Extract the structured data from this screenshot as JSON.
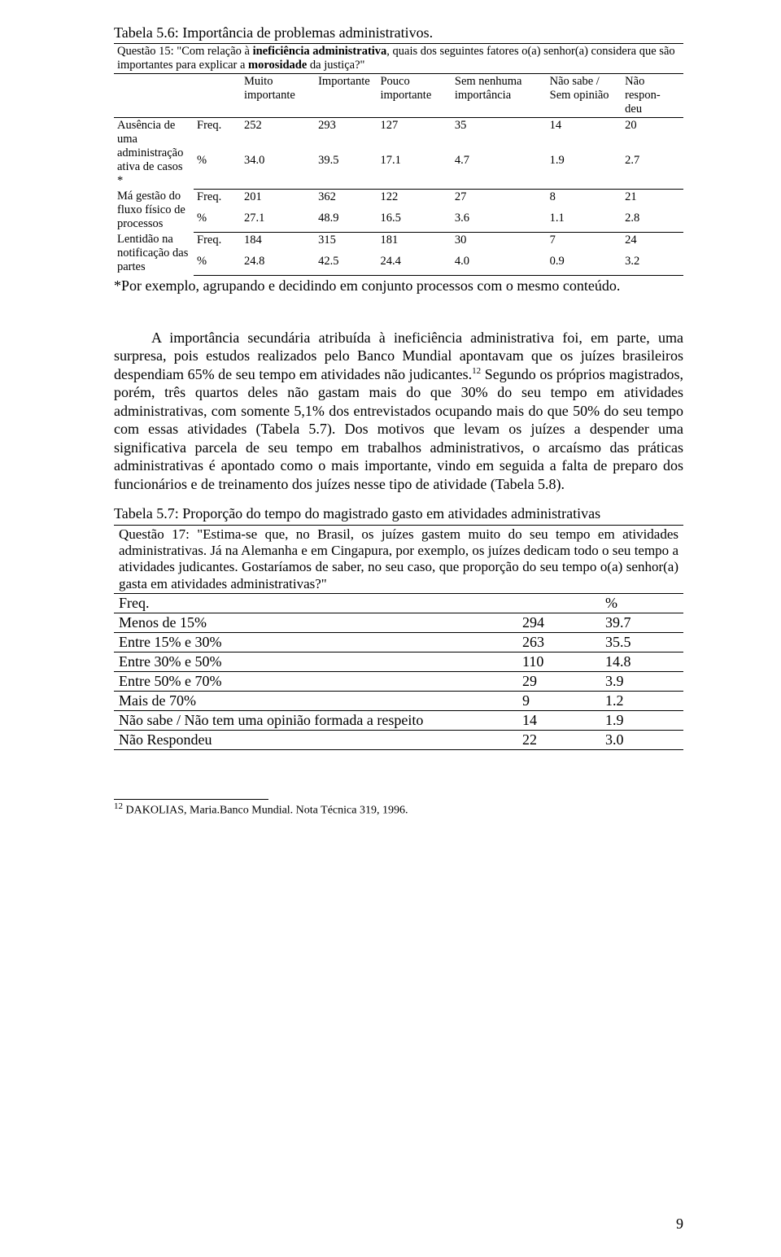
{
  "page_number": "9",
  "table56": {
    "title": "Tabela 5.6: Importância de problemas administrativos.",
    "question": "Questão 15: \"Com relação à ineficiência administrativa, quais dos seguintes fatores o(a) senhor(a) considera que são importantes para explicar a morosidade da justiça?\"",
    "headers": {
      "c1": "Muito importante",
      "c2": "Importante",
      "c3": "Pouco importante",
      "c4": "Sem nenhuma importância",
      "c5": "Não sabe / Sem opinião",
      "c6": "Não respon- deu"
    },
    "rows": [
      {
        "label": "Ausência de uma administração ativa de casos *",
        "freq": [
          "252",
          "293",
          "127",
          "35",
          "14",
          "20"
        ],
        "pct": [
          "34.0",
          "39.5",
          "17.1",
          "4.7",
          "1.9",
          "2.7"
        ]
      },
      {
        "label": "Má gestão do fluxo físico de processos",
        "freq": [
          "201",
          "362",
          "122",
          "27",
          "8",
          "21"
        ],
        "pct": [
          "27.1",
          "48.9",
          "16.5",
          "3.6",
          "1.1",
          "2.8"
        ]
      },
      {
        "label": "Lentidão na notificação das partes",
        "freq": [
          "184",
          "315",
          "181",
          "30",
          "7",
          "24"
        ],
        "pct": [
          "24.8",
          "42.5",
          "24.4",
          "4.0",
          "0.9",
          "3.2"
        ]
      }
    ],
    "note": "*Por exemplo, agrupando e decidindo em conjunto processos com o mesmo conteúdo.",
    "freq_label": "Freq.",
    "pct_label": "%"
  },
  "paragraph": {
    "text_a": "A importância secundária atribuída à ineficiência administrativa foi, em parte, uma surpresa, pois estudos realizados pelo Banco Mundial apontavam que os juízes brasileiros despendiam 65% de seu tempo em atividades não judicantes.",
    "sup": "12",
    "text_b": " Segundo os próprios magistrados, porém, três quartos deles não gastam mais do que 30% do seu tempo em atividades administrativas, com somente 5,1% dos entrevistados ocupando mais do que 50% do seu tempo com essas atividades (Tabela 5.7). Dos motivos que levam os juízes a despender uma significativa parcela de seu tempo em trabalhos administrativos, o arcaísmo das práticas administrativas é apontado como o mais importante, vindo em seguida a falta de preparo dos funcionários e de treinamento dos juízes nesse tipo de atividade (Tabela 5.8)."
  },
  "table57": {
    "title": "Tabela 5.7: Proporção do tempo do magistrado gasto em atividades administrativas",
    "question": "Questão 17: \"Estima-se que, no Brasil, os juízes gastem muito do seu tempo em atividades administrativas. Já na Alemanha e em Cingapura, por exemplo, os juízes dedicam todo o seu tempo a atividades judicantes. Gostaríamos de saber, no seu caso, que proporção do seu tempo o(a) senhor(a) gasta em atividades administrativas?\"",
    "hdr_freq": "Freq.",
    "hdr_pct": "%",
    "rows": [
      {
        "label": "Menos de 15%",
        "freq": "294",
        "pct": "39.7"
      },
      {
        "label": "Entre 15% e 30%",
        "freq": "263",
        "pct": "35.5"
      },
      {
        "label": "Entre 30% e 50%",
        "freq": "110",
        "pct": "14.8"
      },
      {
        "label": "Entre 50% e 70%",
        "freq": "29",
        "pct": "3.9"
      },
      {
        "label": "Mais de 70%",
        "freq": "9",
        "pct": "1.2"
      },
      {
        "label": "Não sabe / Não tem uma opinião formada a respeito",
        "freq": "14",
        "pct": "1.9"
      },
      {
        "label": "Não Respondeu",
        "freq": "22",
        "pct": "3.0"
      }
    ]
  },
  "footnote": {
    "sup": "12",
    "text": " DAKOLIAS, Maria.Banco Mundial. Nota Técnica 319, 1996."
  }
}
